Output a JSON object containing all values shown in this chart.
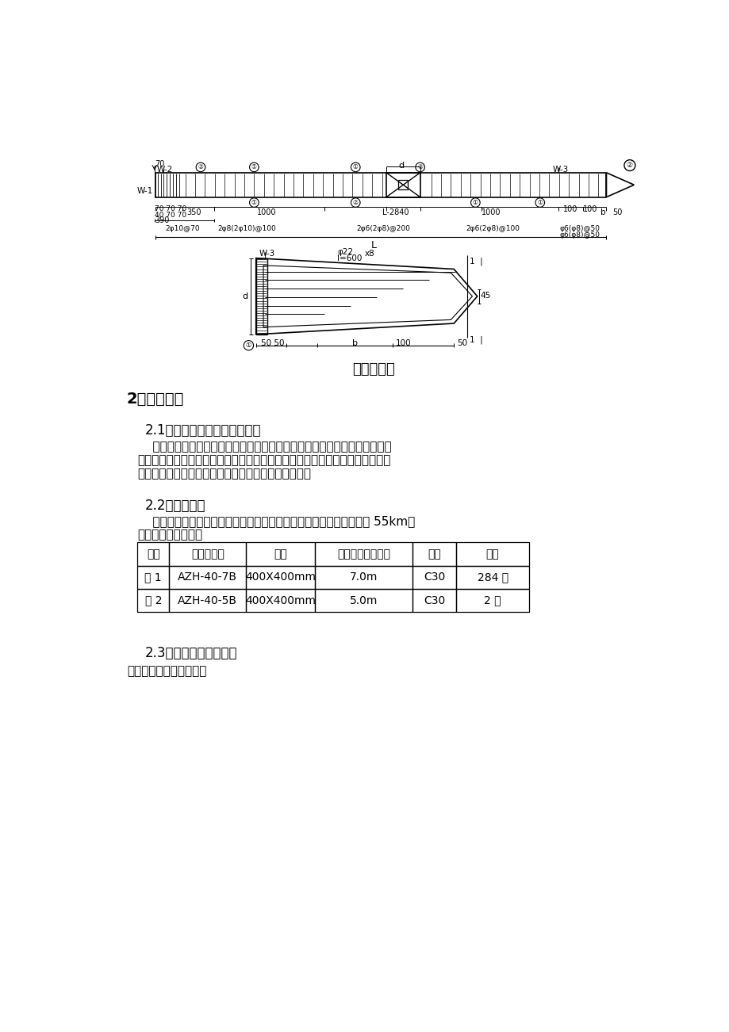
{
  "bg_color": "#ffffff",
  "title_drawing": "桩身配筋图",
  "section2_title": "2、施工准备",
  "section21_title": "2.1、施工人员及有关组织准备",
  "section21_line1": "    根据相应工程进度安排技术、测量人员，施工前编制安全技术交底及应急预",
  "section21_line2": "案，对所有操作人员、进行安全教育和安全交底，明确施工中可能会遇到的突发",
  "section21_line3": "危险状况及处理措施，保证施工操作人员的生命安全。",
  "section22_title": "2.2、材料准备",
  "section22_line1": "    本工程需准备预制钢筋混凝土方桩，从天津静海县运到施工现场运距 55km，",
  "section22_line2": "其规格、数量如下：",
  "table_headers": [
    "序号",
    "预制桩编号",
    "规格",
    "长度（不含桩尖）",
    "强度",
    "数量"
  ],
  "table_row1": [
    "桩 1",
    "AZH-40-7B",
    "400X400mm",
    "7.0m",
    "C30",
    "284 根"
  ],
  "table_row2": [
    "桩 2",
    "AZH-40-5B",
    "400X400mm",
    "5.0m",
    "C30",
    "2 根"
  ],
  "section23_title": "2.3、主要施工机具准备",
  "section23_text": "主要施工机具配置计划："
}
